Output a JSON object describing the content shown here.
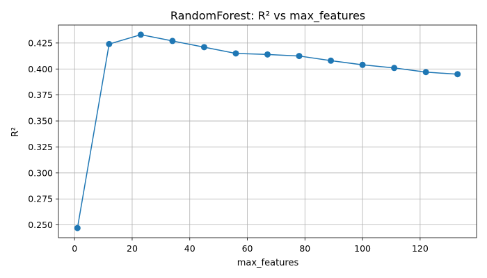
{
  "chart_data": {
    "type": "line",
    "title": "RandomForest: R² vs max_features",
    "xlabel": "max_features",
    "ylabel": "R²",
    "x": [
      1,
      12,
      23,
      34,
      45,
      56,
      67,
      78,
      89,
      100,
      111,
      122,
      133
    ],
    "series": [
      {
        "values": [
          0.247,
          0.424,
          0.433,
          0.427,
          0.421,
          0.415,
          0.414,
          0.4125,
          0.408,
          0.404,
          0.401,
          0.397,
          0.395
        ],
        "color": "#1f77b4",
        "marker": "circle"
      }
    ],
    "xlim": [
      -5.6,
      139.6
    ],
    "ylim": [
      0.2377,
      0.4423
    ],
    "xticks": [
      0,
      20,
      40,
      60,
      80,
      100,
      120
    ],
    "yticks": [
      0.25,
      0.275,
      0.3,
      0.325,
      0.35,
      0.375,
      0.4,
      0.425
    ],
    "xtick_labels": [
      "0",
      "20",
      "40",
      "60",
      "80",
      "100",
      "120"
    ],
    "ytick_labels": [
      "0.250",
      "0.275",
      "0.300",
      "0.325",
      "0.350",
      "0.375",
      "0.400",
      "0.425"
    ],
    "grid": true,
    "legend": false
  }
}
